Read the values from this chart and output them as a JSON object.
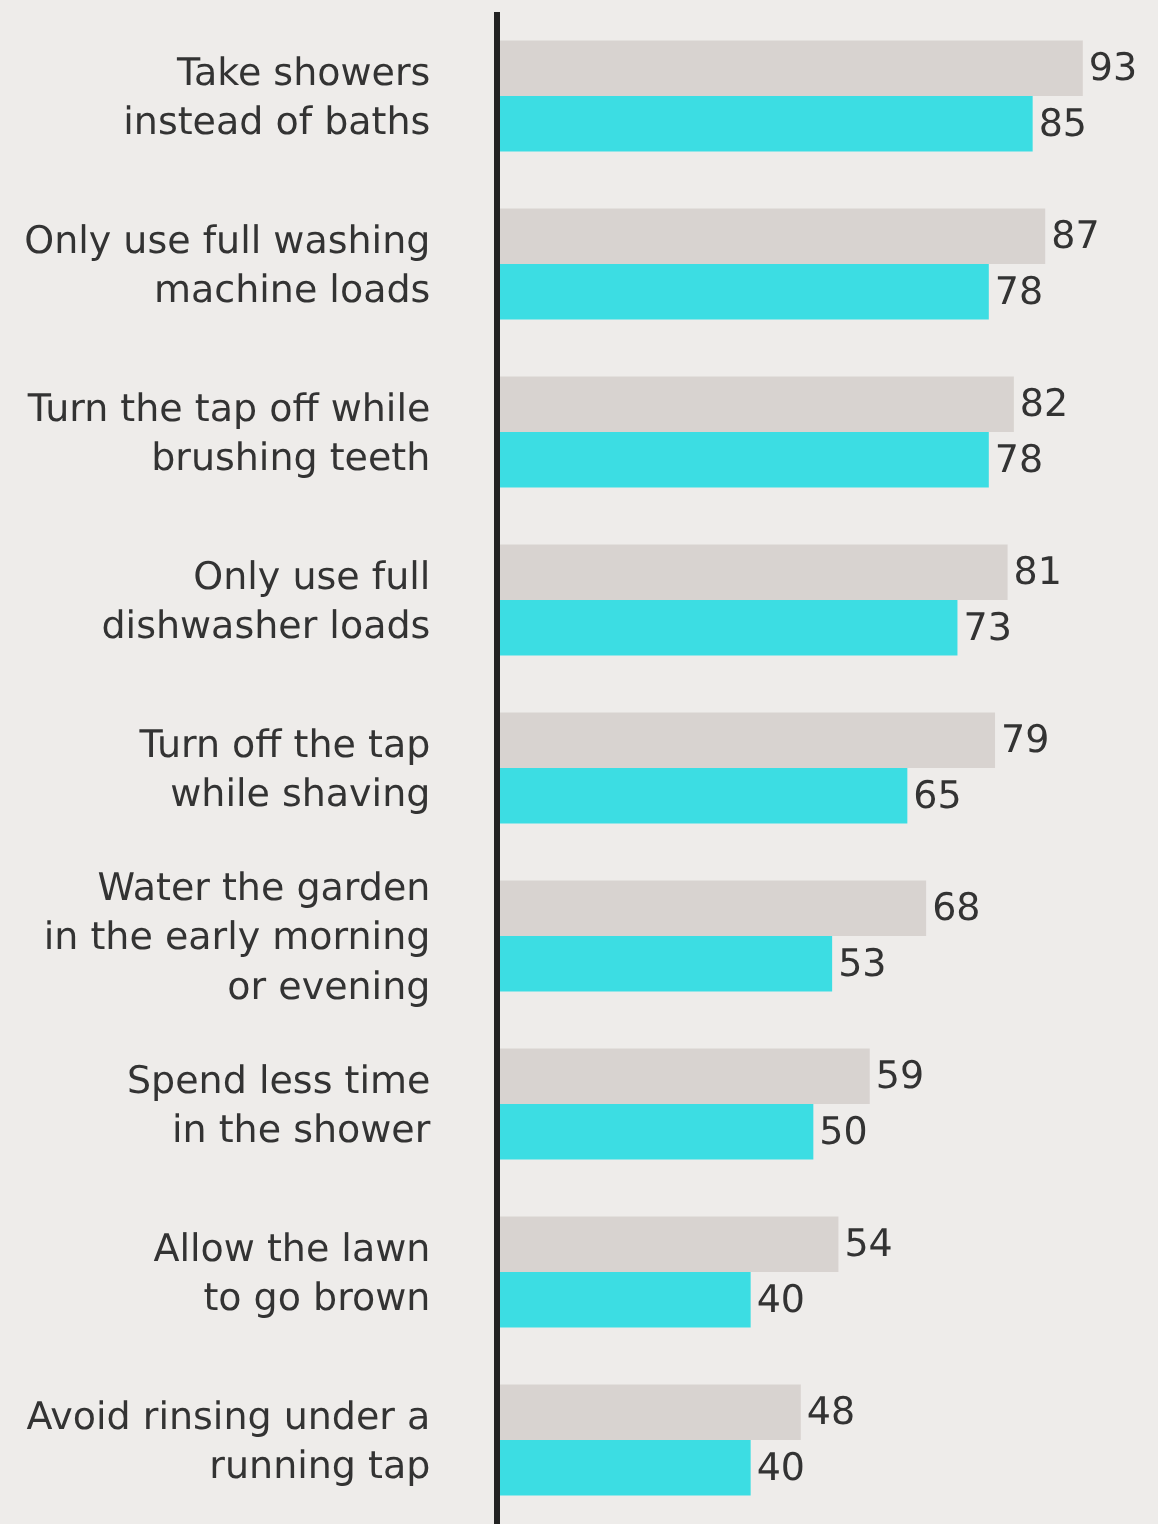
{
  "chart_data": {
    "type": "bar",
    "orientation": "horizontal",
    "categories": [
      "Take showers\ninstead of baths",
      "Only use full washing\nmachine loads",
      "Turn the tap off while\nbrushing teeth",
      "Only use full\ndishwasher loads",
      "Turn off the tap\nwhile shaving",
      "Water the garden\nin the early morning\nor evening",
      "Spend less time\nin the shower",
      "Allow the lawn\nto go brown",
      "Avoid rinsing under a\nrunning tap"
    ],
    "series": [
      {
        "color": "#d8d3d0",
        "values": [
          93,
          87,
          82,
          81,
          79,
          68,
          59,
          54,
          48
        ]
      },
      {
        "color": "#3cdde3",
        "values": [
          85,
          78,
          78,
          73,
          65,
          53,
          50,
          40,
          40
        ]
      }
    ],
    "xlim": [
      0,
      105
    ],
    "data_labels": true,
    "tick_labels": "y"
  }
}
